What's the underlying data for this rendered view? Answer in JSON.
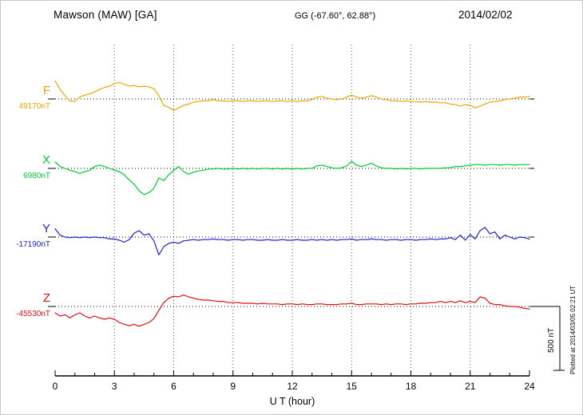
{
  "header": {
    "title": "Mawson (MAW)  [GA]",
    "coords": "GG (-67.60°,  62.88°)",
    "date": "2014/02/02"
  },
  "footer": {
    "xlabel": "U T (hour)"
  },
  "side": {
    "scale_label": "500 nT",
    "plotted_note": "Plotted at 2014/03/05 02:21 UT"
  },
  "chart_data": {
    "type": "line",
    "title": "Mawson (MAW) [GA] magnetogram",
    "date": "2014/02/02",
    "xlabel": "U T (hour)",
    "xlim": [
      0,
      24
    ],
    "xticks": [
      0,
      3,
      6,
      9,
      12,
      15,
      18,
      21,
      24
    ],
    "x_sample_step_hours": 0.25,
    "grid": {
      "vertical_dotted_hours": [
        3,
        6,
        9,
        12,
        15,
        18,
        21
      ],
      "baseline_dotted": true
    },
    "scale_bar": {
      "label": "500 nT",
      "span_nT": 500
    },
    "series": [
      {
        "name": "F",
        "baseline_label": "49170nT",
        "baseline_nT": 49170,
        "color": "#f0a500",
        "offsets_nT": [
          140,
          75,
          25,
          -15,
          -20,
          15,
          30,
          40,
          55,
          75,
          90,
          100,
          120,
          130,
          115,
          100,
          105,
          95,
          100,
          95,
          80,
          25,
          -50,
          -65,
          -90,
          -70,
          -50,
          -40,
          -25,
          -20,
          -15,
          -15,
          -5,
          -15,
          -15,
          -20,
          -15,
          -15,
          -20,
          -15,
          -15,
          -20,
          -15,
          -15,
          -20,
          -15,
          -15,
          -20,
          -15,
          -20,
          -15,
          -15,
          -5,
          15,
          20,
          5,
          0,
          -5,
          0,
          15,
          30,
          15,
          5,
          15,
          25,
          15,
          0,
          -5,
          -15,
          -15,
          -20,
          -15,
          -20,
          -20,
          -25,
          -20,
          -25,
          -25,
          -30,
          -30,
          -40,
          -45,
          -55,
          -45,
          -50,
          -70,
          -55,
          -40,
          -25,
          -20,
          -15,
          -5,
          0,
          5,
          15,
          15,
          20
        ]
      },
      {
        "name": "X",
        "baseline_label": "6980nT",
        "baseline_nT": 6980,
        "color": "#00cc33",
        "offsets_nT": [
          50,
          15,
          0,
          -15,
          -25,
          -40,
          -25,
          -15,
          15,
          25,
          15,
          0,
          -15,
          -25,
          -50,
          -90,
          -125,
          -175,
          -205,
          -190,
          -155,
          -75,
          -95,
          -50,
          -15,
          15,
          -25,
          -45,
          -30,
          -20,
          -15,
          -5,
          -5,
          0,
          -5,
          -5,
          0,
          -5,
          0,
          -5,
          0,
          -5,
          0,
          0,
          -5,
          0,
          -5,
          0,
          -5,
          0,
          -5,
          0,
          0,
          20,
          25,
          15,
          5,
          0,
          5,
          20,
          55,
          25,
          15,
          25,
          40,
          20,
          5,
          0,
          0,
          -5,
          0,
          -5,
          0,
          0,
          -5,
          0,
          0,
          0,
          0,
          5,
          5,
          15,
          15,
          20,
          25,
          30,
          30,
          25,
          30,
          30,
          25,
          30,
          30,
          25,
          30,
          30,
          30
        ]
      },
      {
        "name": "Y",
        "baseline_label": "-17190nT",
        "baseline_nT": -17190,
        "color": "#2222cc",
        "offsets_nT": [
          65,
          15,
          0,
          -5,
          0,
          -5,
          0,
          -5,
          0,
          -5,
          -5,
          -15,
          -15,
          -25,
          -40,
          -20,
          30,
          50,
          15,
          25,
          -30,
          -140,
          -75,
          -50,
          -40,
          -50,
          -30,
          -25,
          -20,
          -25,
          -20,
          -20,
          -15,
          -20,
          -20,
          -25,
          -20,
          -20,
          -25,
          -20,
          -20,
          -25,
          -25,
          -20,
          -25,
          -25,
          -20,
          -25,
          -25,
          -20,
          -25,
          -25,
          -20,
          -25,
          -20,
          -25,
          -20,
          -25,
          -20,
          -20,
          -15,
          -25,
          -20,
          -20,
          -15,
          -20,
          -20,
          -25,
          -20,
          -20,
          -25,
          -20,
          -20,
          -25,
          -20,
          -20,
          -15,
          -20,
          -15,
          -15,
          -5,
          -20,
          15,
          -25,
          20,
          -15,
          50,
          75,
          25,
          40,
          -15,
          15,
          0,
          -15,
          0,
          -5,
          -15
        ]
      },
      {
        "name": "Z",
        "baseline_label": "-45530nT",
        "baseline_nT": -45530,
        "color": "#dd1111",
        "offsets_nT": [
          -50,
          -75,
          -65,
          -90,
          -65,
          -50,
          -75,
          -90,
          -75,
          -90,
          -100,
          -90,
          -100,
          -125,
          -140,
          -150,
          -140,
          -155,
          -140,
          -125,
          -95,
          -30,
          30,
          65,
          80,
          75,
          90,
          75,
          65,
          55,
          50,
          50,
          45,
          40,
          40,
          30,
          30,
          30,
          25,
          25,
          25,
          20,
          25,
          20,
          20,
          20,
          15,
          20,
          20,
          15,
          20,
          15,
          15,
          20,
          20,
          15,
          15,
          15,
          20,
          20,
          25,
          15,
          15,
          20,
          20,
          20,
          15,
          20,
          15,
          20,
          20,
          15,
          20,
          20,
          25,
          25,
          30,
          30,
          40,
          30,
          40,
          30,
          45,
          30,
          40,
          30,
          75,
          65,
          25,
          15,
          15,
          5,
          0,
          0,
          -5,
          -15,
          -20
        ]
      }
    ]
  }
}
